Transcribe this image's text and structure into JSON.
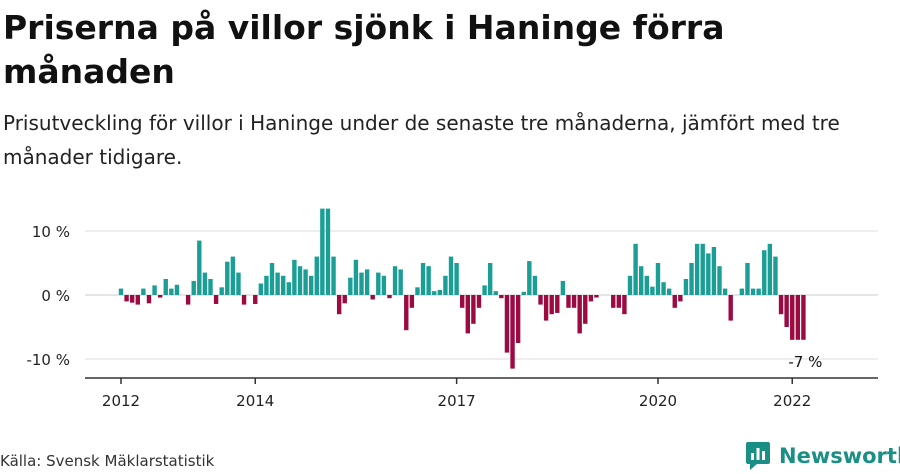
{
  "title": "Priserna på villor sjönk i Haninge förra månaden",
  "subtitle": "Prisutveckling för villor i Haninge under de senaste tre månaderna, jämfört med tre månader tidigare.",
  "source": "Källa: Svensk Mäklarstatistik",
  "brand": {
    "name": "Newsworthy",
    "icon": "newsworthy-logo-icon"
  },
  "colors": {
    "positive": "#1a9e96",
    "negative": "#9b0a41",
    "axis": "#333333",
    "grid": "#dddddd"
  },
  "chart_data": {
    "type": "bar",
    "title": "Priserna på villor sjönk i Haninge förra månaden",
    "xlabel": "",
    "ylabel": "",
    "ylim": [
      -12,
      15
    ],
    "yticks": [
      10,
      0,
      -10
    ],
    "ytick_labels": [
      "10 %",
      "0 %",
      "-10 %"
    ],
    "xtick_labels": [
      {
        "label": "2012",
        "date": 2012.0
      },
      {
        "label": "2014",
        "date": 2014.0
      },
      {
        "label": "2017",
        "date": 2017.0
      },
      {
        "label": "2020",
        "date": 2020.0
      },
      {
        "label": "2022",
        "date": 2022.0
      }
    ],
    "start": 2012.0,
    "step": 0.08333,
    "last_label": "-7 %",
    "values": [
      1,
      -1,
      -1.2,
      -1.5,
      1,
      -1.3,
      1.5,
      -0.4,
      2.5,
      1,
      1.6,
      0,
      -1.5,
      2.2,
      8.5,
      3.5,
      2.5,
      -1.4,
      1.2,
      5.2,
      6,
      3.5,
      -1.5,
      0,
      -1.4,
      1.8,
      3,
      5,
      3.5,
      3,
      2,
      5.5,
      4.5,
      4,
      3,
      6,
      13.5,
      13.5,
      6,
      -3,
      -1.3,
      2.7,
      5.5,
      3.5,
      4,
      -0.7,
      3.5,
      3,
      -0.5,
      4.5,
      4,
      -5.5,
      -2,
      1.2,
      5,
      4.5,
      0.6,
      0.8,
      3,
      6,
      5,
      -2,
      -6,
      -4.5,
      -2,
      1.5,
      5,
      0.6,
      -0.5,
      -9,
      -11.5,
      -7.5,
      0.5,
      5.3,
      3,
      -1.5,
      -4,
      -3,
      -2.8,
      2.2,
      -2,
      -2,
      -6,
      -4.5,
      -1,
      -0.4,
      0,
      0,
      -2,
      -2,
      -3,
      3,
      8,
      4.5,
      3,
      1.3,
      5,
      2,
      1,
      -2,
      -1,
      2.5,
      5,
      8,
      8,
      6.5,
      7.5,
      4.5,
      1,
      -4,
      0,
      1,
      5,
      1,
      1,
      7,
      8,
      6,
      -3,
      -5,
      -7,
      -7,
      -7
    ]
  }
}
